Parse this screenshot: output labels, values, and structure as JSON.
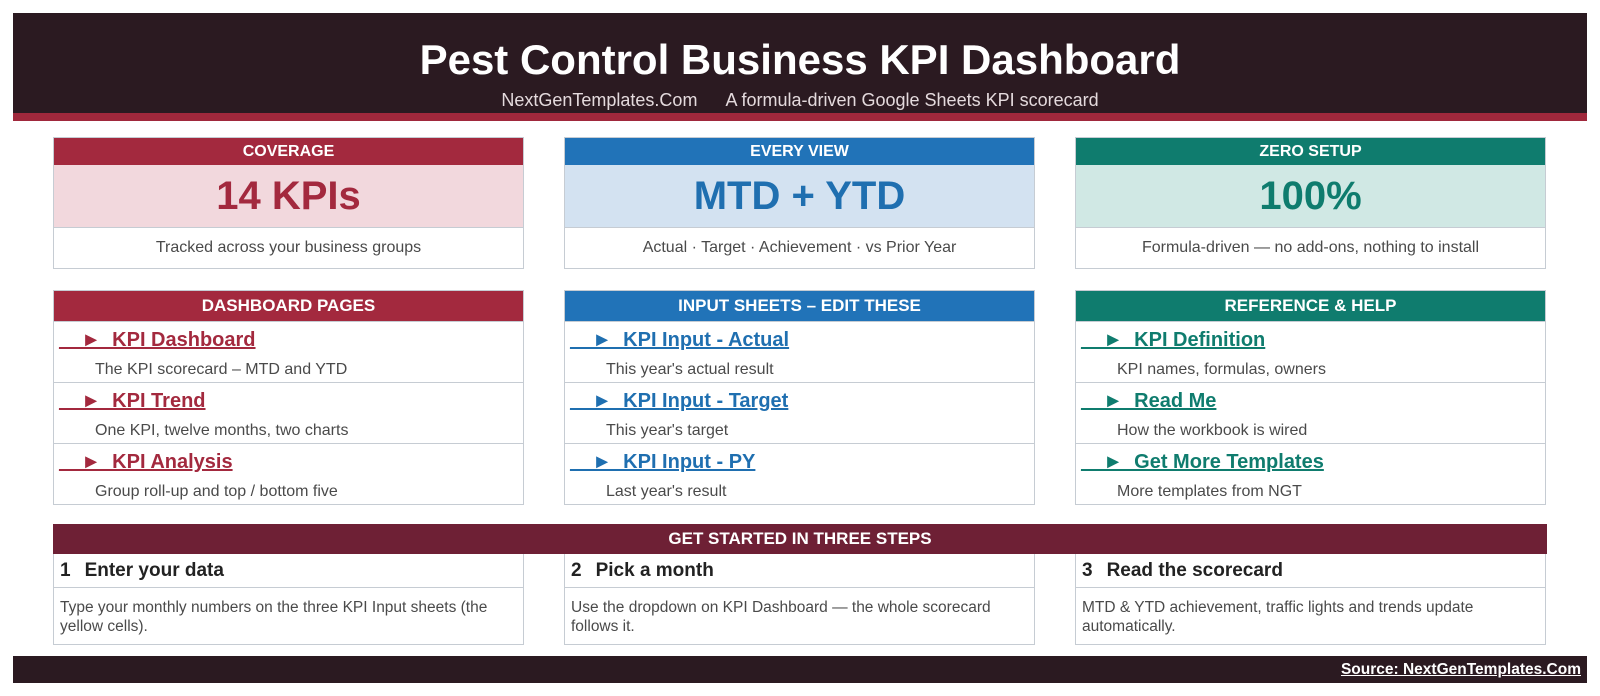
{
  "header": {
    "title": "Pest Control Business KPI Dashboard",
    "site": "NextGenTemplates.Com",
    "tagline": "A formula-driven Google Sheets KPI scorecard"
  },
  "kpi_cards": [
    {
      "caption": "COVERAGE",
      "value": "14 KPIs",
      "description": "Tracked across your business groups"
    },
    {
      "caption": "EVERY VIEW",
      "value": "MTD + YTD",
      "description": "Actual · Target · Achievement · vs Prior Year"
    },
    {
      "caption": "ZERO SETUP",
      "value": "100%",
      "description": "Formula-driven — no add-ons, nothing to install"
    }
  ],
  "nav_cards": [
    {
      "caption": "DASHBOARD PAGES",
      "items": [
        {
          "link": "__►_KPI Dashboard",
          "desc": "The KPI scorecard – MTD and YTD"
        },
        {
          "link": "__►_KPI Trend",
          "desc": "One KPI, twelve months, two charts"
        },
        {
          "link": "__►_KPI Analysis",
          "desc": "Group roll-up and top / bottom five"
        }
      ]
    },
    {
      "caption": "INPUT SHEETS – EDIT THESE",
      "items": [
        {
          "link": "__►_KPI Input - Actual",
          "desc": "This year's actual result"
        },
        {
          "link": "__►_KPI Input - Target",
          "desc": "This year's target"
        },
        {
          "link": "__►_KPI Input - PY",
          "desc": "Last year's result"
        }
      ]
    },
    {
      "caption": "REFERENCE & HELP",
      "items": [
        {
          "link": "__►_KPI Definition",
          "desc": "KPI names, formulas, owners"
        },
        {
          "link": "__►_Read Me",
          "desc": "How the workbook is wired"
        },
        {
          "link": "__►_Get More Templates",
          "desc": "More templates from NGT"
        }
      ]
    }
  ],
  "steps": {
    "title": "GET STARTED IN THREE STEPS",
    "items": [
      {
        "num": "1",
        "title": "Enter your data",
        "body": "Type your monthly numbers on the three KPI Input sheets (the yellow cells)."
      },
      {
        "num": "2",
        "title": "Pick a month",
        "body": "Use the dropdown on KPI Dashboard — the whole scorecard follows it."
      },
      {
        "num": "3",
        "title": "Read the scorecard",
        "body": "MTD & YTD achievement, traffic lights and trends update automatically."
      }
    ]
  },
  "footer": {
    "source": "Source: NextGenTemplates.Com"
  },
  "colors": {
    "header": "#2b1a21",
    "accent_red": "#a3293e",
    "accent_blue": "#2173b8",
    "accent_teal": "#0f7c6e",
    "steps_band": "#6e2035"
  }
}
